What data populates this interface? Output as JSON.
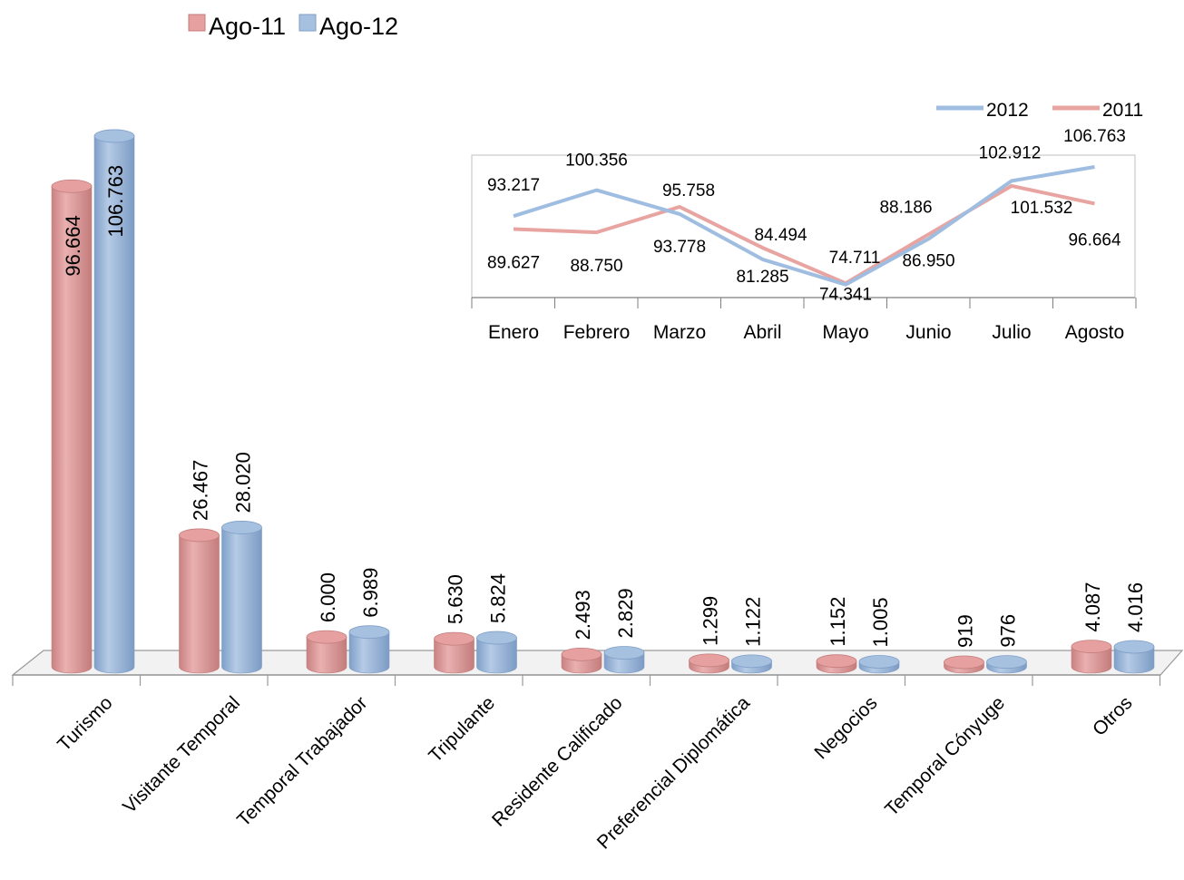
{
  "colors": {
    "ago11": "#e6a0a0",
    "ago12": "#a6c0e0",
    "ago11_dark": "#c47d7d",
    "ago12_dark": "#7f9ec7",
    "line2012": "#9fbde0",
    "line2011": "#e8a4a0"
  },
  "chart_data": [
    {
      "type": "bar",
      "categories": [
        "Turismo",
        "Visitante Temporal",
        "Temporal Trabajador",
        "Tripulante",
        "Residente Calificado",
        "Preferencial Diplomática",
        "Negocios",
        "Temporal Cónyuge",
        "Otros"
      ],
      "series": [
        {
          "name": "Ago-11",
          "values": [
            96664,
            26467,
            6000,
            5630,
            2493,
            1299,
            1152,
            919,
            4087
          ],
          "labels": [
            "96.664",
            "26.467",
            "6.000",
            "5.630",
            "2.493",
            "1.299",
            "1.152",
            "919",
            "4.087"
          ]
        },
        {
          "name": "Ago-12",
          "values": [
            106763,
            28020,
            6989,
            5824,
            2829,
            1122,
            1005,
            976,
            4016
          ],
          "labels": [
            "106.763",
            "28.020",
            "6.989",
            "5.824",
            "2.829",
            "1.122",
            "1.005",
            "976",
            "4.016"
          ]
        }
      ],
      "legend_position": "top-left"
    },
    {
      "type": "line",
      "categories": [
        "Enero",
        "Febrero",
        "Marzo",
        "Abril",
        "Mayo",
        "Junio",
        "Julio",
        "Agosto"
      ],
      "series": [
        {
          "name": "2012",
          "values": [
            93217,
            100356,
            93778,
            81285,
            74341,
            86950,
            102912,
            106763
          ],
          "labels": [
            "93.217",
            "100.356",
            "93.778",
            "81.285",
            "74.341",
            "86.950",
            "102.912",
            "106.763"
          ]
        },
        {
          "name": "2011",
          "values": [
            89627,
            88750,
            95758,
            84494,
            74711,
            88186,
            101532,
            96664
          ],
          "labels": [
            "89.627",
            "88.750",
            "95.758",
            "84.494",
            "74.711",
            "88.186",
            "101.532",
            "96.664"
          ]
        }
      ],
      "legend_position": "top-right"
    }
  ]
}
